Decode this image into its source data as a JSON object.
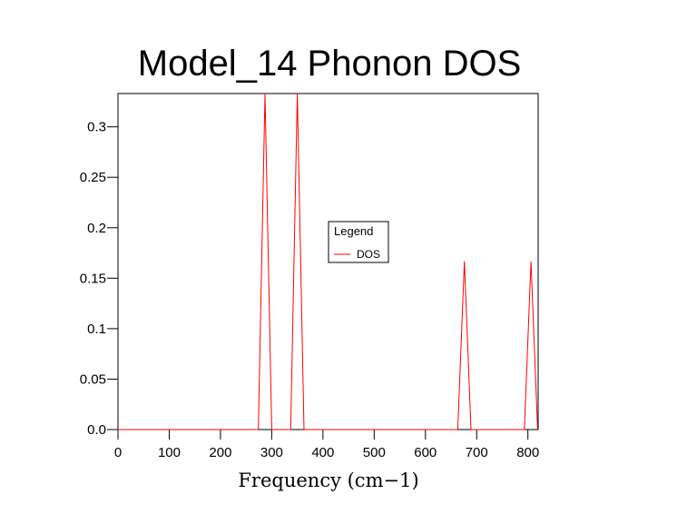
{
  "chart_data": {
    "type": "line",
    "title": "Model_14 Phonon DOS",
    "xlabel": "Frequency (cm−1)",
    "ylabel": "",
    "xlim": [
      0,
      820
    ],
    "ylim": [
      0,
      0.333
    ],
    "xticks": [
      0,
      100,
      200,
      300,
      400,
      500,
      600,
      700,
      800
    ],
    "xtick_labels": [
      "0",
      "100",
      "200",
      "300",
      "400",
      "500",
      "600",
      "700",
      "800"
    ],
    "yticks": [
      0.0,
      0.05,
      0.1,
      0.15,
      0.2,
      0.25,
      0.3
    ],
    "ytick_labels": [
      "0.0",
      "0.05",
      "0.1",
      "0.15",
      "0.2",
      "0.25",
      "0.3"
    ],
    "legend": {
      "title": "Legend",
      "placement": "center"
    },
    "series": [
      {
        "name": "DOS",
        "color": "#ff0000",
        "x": [
          0,
          274,
          287,
          300,
          337,
          350,
          363,
          663,
          676,
          689,
          793,
          806,
          819
        ],
        "y": [
          0,
          0,
          0.333,
          0,
          0,
          0.333,
          0,
          0,
          0.1667,
          0,
          0,
          0.1667,
          0
        ]
      }
    ]
  }
}
